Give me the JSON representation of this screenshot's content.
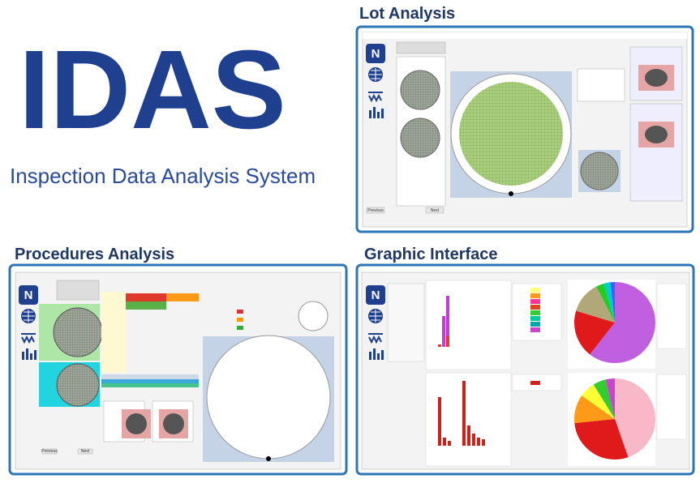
{
  "header": {
    "title": "IDAS",
    "subtitle": "Inspection Data Analysis System"
  },
  "panels": [
    {
      "heading": "Lot Analysis",
      "buttons": [
        "Previous",
        "Next"
      ]
    },
    {
      "heading": "Procedures Analysis",
      "buttons": [
        "Previous",
        "Next"
      ]
    },
    {
      "heading": "Graphic Interface"
    }
  ]
}
